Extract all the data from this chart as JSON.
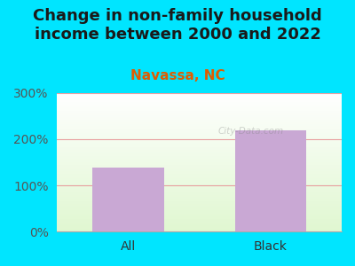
{
  "title": "Change in non-family household\nincome between 2000 and 2022",
  "subtitle": "Navassa, NC",
  "categories": [
    "All",
    "Black"
  ],
  "values": [
    138,
    218
  ],
  "bar_color": "#c9a8d4",
  "title_color": "#1a1a1a",
  "subtitle_color": "#e05c00",
  "background_outer": "#00e5ff",
  "ylim": [
    0,
    300
  ],
  "yticks": [
    0,
    100,
    200,
    300
  ],
  "ytick_labels": [
    "0%",
    "100%",
    "200%",
    "300%"
  ],
  "grid_color": "#e8a0a0",
  "watermark": "City-Data.com",
  "title_fontsize": 13,
  "subtitle_fontsize": 11,
  "tick_fontsize": 10
}
